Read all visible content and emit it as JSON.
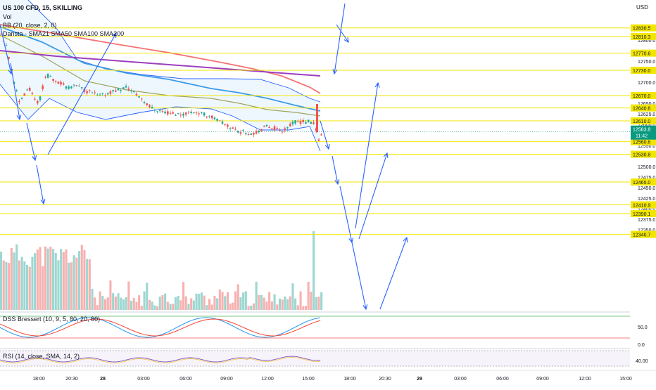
{
  "chart_data": {
    "type": "candlestick",
    "symbol_title": "US 100 CFD, 15, SKILLING",
    "currency_label": "USD",
    "indicators": {
      "volume_label": "Vol",
      "bb_label": "BB (20, close, 2, 0)",
      "sma_label": "Dansta - SMA21 SMA50 SMA100 SMA200",
      "dss_label": "DSS Bressert (10, 9, 5, 80, 20, 60)",
      "rsi_label": "RSI (14, close, SMA, 14, 2)"
    },
    "price_ticks": [
      "12800.0",
      "12750.0",
      "12700.0",
      "12650.0",
      "12625.0",
      "12600.0",
      "12550.0",
      "12500.0",
      "12475.0",
      "12450.0",
      "12425.0",
      "12400.0",
      "12375.0",
      "12350.0"
    ],
    "levels": [
      12830.5,
      12810.3,
      12770.6,
      12730.0,
      12670.0,
      12640.6,
      12610.0,
      12560.6,
      12530.8,
      12465.0,
      12410.9,
      12390.1,
      12340.7
    ],
    "current_price": "12583.8",
    "countdown": "11:42",
    "dss_ticks": [
      "50.0",
      "0.0"
    ],
    "rsi_ticks": [
      "40.00"
    ],
    "time_labels": [
      "18:00",
      "20:30",
      "28",
      "03:00",
      "06:00",
      "09:00",
      "12:00",
      "15:00",
      "18:00",
      "20:30",
      "29",
      "03:00",
      "06:00",
      "09:00",
      "12:00",
      "15:00"
    ],
    "colors": {
      "up": "#26a69a",
      "down": "#ef5350",
      "level": "#f2e600",
      "arrow": "#2962ff",
      "bb": "#2962ff",
      "sma21": "#a0a35a",
      "sma50": "#3b9ae6",
      "sma100": "#f47272",
      "sma200": "#9c3fbf",
      "current_tag": "#089981"
    }
  }
}
